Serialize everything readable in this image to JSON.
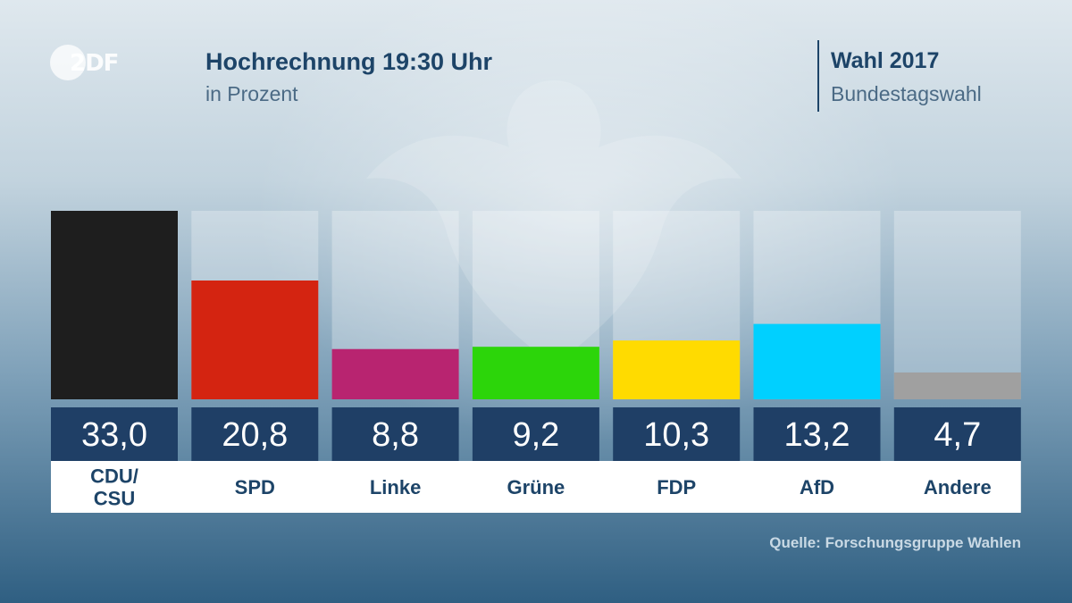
{
  "header": {
    "logo": "2DF",
    "title": "Hochrechnung 19:30 Uhr",
    "subtitle": "in Prozent",
    "election_title": "Wahl 2017",
    "election_subtitle": "Bundestagswahl"
  },
  "footer": {
    "source": "Quelle: Forschungsgruppe Wahlen"
  },
  "chart_data": {
    "type": "bar",
    "title": "Hochrechnung 19:30 Uhr",
    "subtitle": "in Prozent",
    "categories": [
      [
        "CDU/",
        "CSU"
      ],
      [
        "SPD"
      ],
      [
        "Linke"
      ],
      [
        "Grüne"
      ],
      [
        "FDP"
      ],
      [
        "AfD"
      ],
      [
        "Andere"
      ]
    ],
    "values": [
      33.0,
      20.8,
      8.8,
      9.2,
      10.3,
      13.2,
      4.7
    ],
    "value_labels": [
      "33,0",
      "20,8",
      "8,8",
      "9,2",
      "10,3",
      "13,2",
      "4,7"
    ],
    "colors": [
      "#1e1e1e",
      "#d42411",
      "#b82470",
      "#2cd50a",
      "#ffdb00",
      "#00d0ff",
      "#a0a0a0"
    ],
    "ylim": [
      0,
      33.0
    ],
    "grid": false,
    "legend": "none"
  }
}
